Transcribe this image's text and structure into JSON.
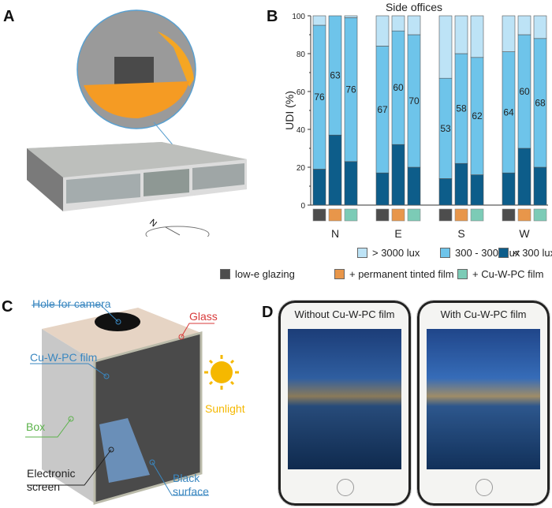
{
  "panels": {
    "a": "A",
    "b": "B",
    "c": "C",
    "d": "D"
  },
  "panel_a": {
    "compass_label": "N"
  },
  "chart_data": {
    "type": "bar",
    "stacked": true,
    "title": "Side offices",
    "ylabel": "UDI (%)",
    "xlabel": "",
    "ylim": [
      0,
      100
    ],
    "yticks": [
      "0",
      "20",
      "40",
      "60",
      "80",
      "100"
    ],
    "groups": [
      "N",
      "E",
      "S",
      "W"
    ],
    "categories_per_group": [
      "low-e glazing",
      "+ permanent tinted film",
      "+ Cu-W-PC film"
    ],
    "category_colors": [
      "#4d4d4d",
      "#e8964a",
      "#7ccbb6"
    ],
    "series": [
      {
        "name": "< 300 lux",
        "color": "#0d5d8a",
        "values": [
          [
            19,
            37,
            23
          ],
          [
            17,
            32,
            20
          ],
          [
            14,
            22,
            16
          ],
          [
            17,
            30,
            20
          ]
        ]
      },
      {
        "name": "300 - 3000 lux",
        "color": "#6ec4ea",
        "values": [
          [
            76,
            63,
            76
          ],
          [
            67,
            60,
            70
          ],
          [
            53,
            58,
            62
          ],
          [
            64,
            60,
            68
          ]
        ],
        "labels": [
          [
            "76",
            "63",
            "76"
          ],
          [
            "67",
            "60",
            "70"
          ],
          [
            "53",
            "58",
            "62"
          ],
          [
            "64",
            "60",
            "68"
          ]
        ]
      },
      {
        "name": "> 3000 lux",
        "color": "#bde3f6",
        "values": [
          [
            5,
            0,
            1
          ],
          [
            16,
            8,
            10
          ],
          [
            33,
            20,
            22
          ],
          [
            19,
            10,
            12
          ]
        ]
      }
    ],
    "legend_placement": "bottom",
    "grid": false
  },
  "legend": {
    "lux": [
      "> 3000 lux",
      "300 - 3000 lux",
      "< 300 lux"
    ],
    "glazing": [
      "low-e glazing",
      "+ permanent tinted film",
      "+ Cu-W-PC film"
    ]
  },
  "panel_c": {
    "hole": "Hole for camera",
    "glass": "Glass",
    "film": "Cu-W-PC film",
    "sunlight": "Sunlight",
    "box": "Box",
    "screen_line1": "Electronic",
    "screen_line2": "screen",
    "surface_line1": "Black",
    "surface_line2": "surface",
    "colors": {
      "blue": "#3a87c0",
      "red": "#d83a3a",
      "green": "#5bb24a",
      "sun": "#f5b800"
    }
  },
  "panel_d": {
    "left_caption": "Without Cu-W-PC film",
    "right_caption": "With Cu-W-PC film"
  }
}
